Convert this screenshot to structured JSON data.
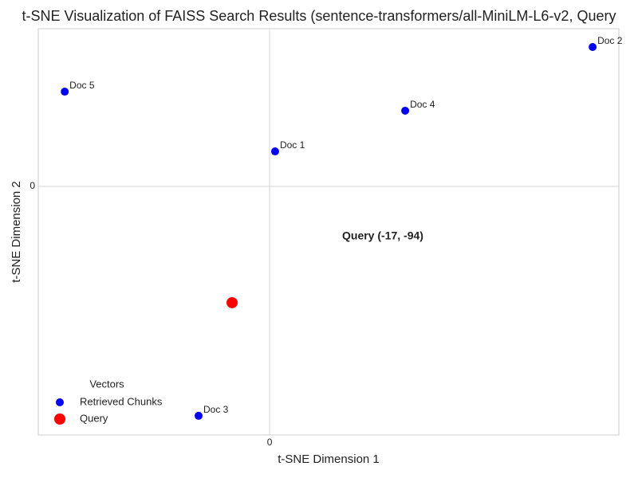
{
  "chart_data": {
    "type": "scatter",
    "title": "t-SNE Visualization of FAISS Search Results (sentence-transformers/all-MiniLM-L6-v2, Query",
    "xlabel": "t-SNE Dimension 1",
    "ylabel": "t-SNE Dimension 2",
    "xlim": [
      -104.9,
      158.4
    ],
    "ylim": [
      -200.9,
      127.5
    ],
    "xticks": [
      0
    ],
    "yticks": [
      0
    ],
    "grid": true,
    "legend_title": "Vectors",
    "legend_position": "lower left",
    "annotation": "Query (-17, -94)",
    "series": [
      {
        "name": "Retrieved Chunks",
        "color": "#0000ff",
        "size": 5,
        "x": [
          2.5,
          146.5,
          -32.2,
          61.5,
          -92.9
        ],
        "y": [
          28.3,
          112.7,
          -185.4,
          61.2,
          76.6
        ],
        "labels": [
          "Doc 1",
          "Doc 2",
          "Doc 3",
          "Doc 4",
          "Doc 5"
        ]
      },
      {
        "name": "Query",
        "color": "#ff0000",
        "size": 7,
        "x": [
          -17
        ],
        "y": [
          -94
        ]
      }
    ]
  }
}
